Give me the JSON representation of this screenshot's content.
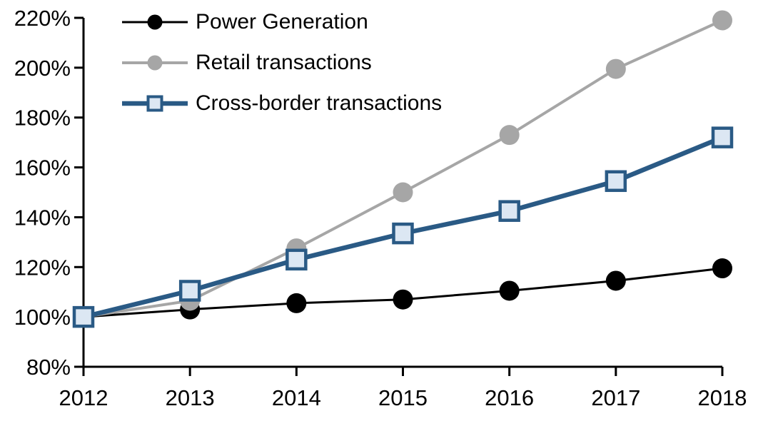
{
  "chart_data": {
    "type": "line",
    "x_categories": [
      "2012",
      "2013",
      "2014",
      "2015",
      "2016",
      "2017",
      "2018"
    ],
    "y_tick_labels": [
      "220%",
      "200%",
      "180%",
      "160%",
      "140%",
      "120%",
      "100%",
      "80%"
    ],
    "y_axis": {
      "min": 80,
      "max": 220,
      "step": 20,
      "unit": "%"
    },
    "grid": false,
    "legend": {
      "position": "top-left-inside"
    },
    "series": [
      {
        "name": "Power Generation",
        "marker": "circle",
        "color": "#000000",
        "marker_fill": "#000000",
        "line_width": 3,
        "values": [
          100,
          103,
          105.5,
          107,
          110.5,
          114.5,
          119.5
        ]
      },
      {
        "name": "Retail transactions",
        "marker": "circle",
        "color": "#A6A6A6",
        "marker_fill": "#A6A6A6",
        "line_width": 4,
        "values": [
          100,
          106.5,
          127.5,
          150,
          173,
          199.5,
          219
        ]
      },
      {
        "name": "Cross-border transactions",
        "marker": "square",
        "color": "#2A5A85",
        "marker_fill": "#DCE7F3",
        "line_width": 6.5,
        "values": [
          100,
          110.5,
          123,
          133.5,
          142.5,
          154.5,
          172
        ]
      }
    ]
  }
}
